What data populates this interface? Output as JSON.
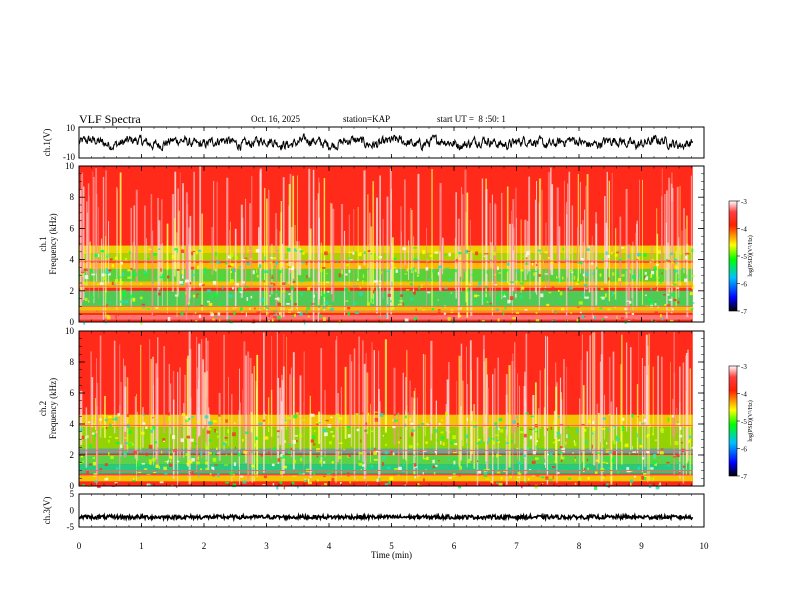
{
  "header": {
    "title": "VLF Spectra",
    "date": "Oct. 16, 2025",
    "station_label": "station=",
    "station": "KAP",
    "start_label": "start UT =",
    "start_time": "8 :50: 1"
  },
  "chart_data": [
    {
      "type": "line",
      "panel": "ch1-waveform",
      "ylabel": "ch.1(V)",
      "ylim": [
        -10,
        10
      ],
      "yticks": [
        "10",
        "-10"
      ],
      "xlim": [
        0,
        10
      ],
      "description_series": "black waveform oscillating roughly between -5 and 5 V over 0-9.8 min"
    },
    {
      "type": "heatmap",
      "panel": "ch1-spectrogram",
      "ylabel": "ch.1\nFrequency (kHz)",
      "ylabel_line1": "ch.1",
      "ylabel_line2": "Frequency (kHz)",
      "ylim": [
        0,
        10
      ],
      "yticks": [
        "0",
        "2",
        "4",
        "6",
        "8",
        "10"
      ],
      "xlim": [
        0,
        10
      ],
      "colorbar": {
        "label": "log(PSD)(V²/Hz)",
        "range": [
          -7,
          -3
        ],
        "ticks": [
          "-3",
          "-4",
          "-5",
          "-6",
          "-7"
        ]
      }
    },
    {
      "type": "heatmap",
      "panel": "ch2-spectrogram",
      "ylabel_line1": "ch.2",
      "ylabel_line2": "Frequency (kHz)",
      "ylim": [
        0,
        10
      ],
      "yticks": [
        "0",
        "2",
        "4",
        "6",
        "8",
        "10"
      ],
      "xlim": [
        0,
        10
      ],
      "colorbar": {
        "label": "log(PSD)(V²/Hz)",
        "range": [
          -7,
          -3
        ],
        "ticks": [
          "-3",
          "-4",
          "-5",
          "-6",
          "-7"
        ]
      }
    },
    {
      "type": "line",
      "panel": "ch3-waveform",
      "ylabel": "ch.3(V)",
      "ylim": [
        -5,
        5
      ],
      "yticks": [
        "5",
        "0",
        "-5"
      ],
      "xlim": [
        0,
        10
      ],
      "xlabel": "Time (min)",
      "xticks": [
        "0",
        "1",
        "2",
        "3",
        "4",
        "5",
        "6",
        "7",
        "8",
        "9",
        "10"
      ]
    }
  ]
}
